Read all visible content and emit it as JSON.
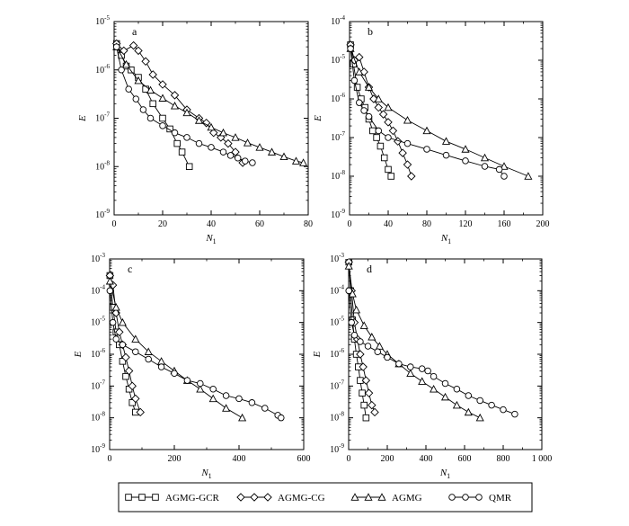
{
  "figure": {
    "legend": [
      {
        "name": "AGMG-GCR",
        "marker": "square"
      },
      {
        "name": "AGMG-CG",
        "marker": "diamond"
      },
      {
        "name": "AGMG",
        "marker": "triangle"
      },
      {
        "name": "QMR",
        "marker": "circle"
      }
    ]
  },
  "chart_data": [
    {
      "type": "line",
      "panel": "a",
      "xlabel": "N",
      "xlabel_sub": "1",
      "ylabel": "E",
      "xlim": [
        0,
        80
      ],
      "xticks": [
        0,
        20,
        40,
        60,
        80
      ],
      "ylim_exp": [
        -9,
        -5
      ],
      "yscale": "log",
      "series": [
        {
          "name": "AGMG-GCR",
          "x": [
            1,
            3,
            5,
            7,
            10,
            13,
            16,
            20,
            23,
            26,
            28,
            31
          ],
          "y": [
            3.5e-06,
            2e-06,
            1.2e-06,
            1e-06,
            7e-07,
            4e-07,
            2e-07,
            1e-07,
            6e-08,
            3e-08,
            2e-08,
            1e-08
          ]
        },
        {
          "name": "AGMG-CG",
          "x": [
            1,
            4,
            8,
            10,
            13,
            16,
            20,
            25,
            30,
            35,
            38,
            41,
            44,
            47,
            50,
            53
          ],
          "y": [
            3.5e-06,
            2.5e-06,
            3.2e-06,
            2.5e-06,
            1.5e-06,
            8e-07,
            5e-07,
            3e-07,
            1.5e-07,
            1e-07,
            8e-08,
            5e-08,
            4e-08,
            3e-08,
            2e-08,
            1.2e-08
          ]
        },
        {
          "name": "AGMG",
          "x": [
            1,
            5,
            10,
            15,
            20,
            25,
            30,
            35,
            40,
            45,
            50,
            55,
            60,
            65,
            70,
            75,
            78
          ],
          "y": [
            3e-06,
            1.3e-06,
            6e-07,
            3.8e-07,
            2.6e-07,
            1.8e-07,
            1.3e-07,
            9e-08,
            6.5e-08,
            5e-08,
            4e-08,
            3.1e-08,
            2.5e-08,
            2e-08,
            1.6e-08,
            1.3e-08,
            1.2e-08
          ]
        },
        {
          "name": "QMR",
          "x": [
            1,
            3,
            6,
            9,
            12,
            15,
            20,
            25,
            30,
            35,
            40,
            45,
            48,
            51,
            54,
            57
          ],
          "y": [
            3e-06,
            1e-06,
            4e-07,
            2.5e-07,
            1.5e-07,
            1e-07,
            7e-08,
            5e-08,
            4e-08,
            3e-08,
            2.5e-08,
            2e-08,
            1.7e-08,
            1.5e-08,
            1.3e-08,
            1.2e-08
          ]
        }
      ]
    },
    {
      "type": "line",
      "panel": "b",
      "xlabel": "N",
      "xlabel_sub": "1",
      "ylabel": "E",
      "xlim": [
        0,
        200
      ],
      "xticks": [
        0,
        40,
        80,
        120,
        160,
        200
      ],
      "ylim_exp": [
        -9,
        -4
      ],
      "yscale": "log",
      "series": [
        {
          "name": "AGMG-GCR",
          "x": [
            1,
            4,
            8,
            12,
            16,
            20,
            24,
            28,
            32,
            36,
            40,
            43
          ],
          "y": [
            2.5e-05,
            8e-06,
            2e-06,
            1e-06,
            6e-07,
            3e-07,
            1.5e-07,
            1e-07,
            6e-08,
            3e-08,
            1.5e-08,
            1e-08
          ]
        },
        {
          "name": "AGMG-CG",
          "x": [
            1,
            5,
            10,
            15,
            20,
            25,
            30,
            35,
            40,
            45,
            50,
            55,
            60,
            64
          ],
          "y": [
            2.5e-05,
            1e-05,
            1.2e-05,
            5e-06,
            2e-06,
            1e-06,
            6e-07,
            4e-07,
            2.5e-07,
            1.5e-07,
            8e-08,
            4e-08,
            2e-08,
            1e-08
          ]
        },
        {
          "name": "AGMG",
          "x": [
            1,
            10,
            20,
            30,
            40,
            60,
            80,
            100,
            120,
            140,
            160,
            185
          ],
          "y": [
            2e-05,
            5e-06,
            2e-06,
            1e-06,
            6e-07,
            2.8e-07,
            1.5e-07,
            8e-08,
            5e-08,
            3e-08,
            1.8e-08,
            1e-08
          ]
        },
        {
          "name": "QMR",
          "x": [
            1,
            5,
            10,
            15,
            20,
            30,
            40,
            60,
            80,
            100,
            120,
            140,
            155,
            160
          ],
          "y": [
            2e-05,
            3e-06,
            8e-07,
            5e-07,
            3.5e-07,
            1.5e-07,
            1e-07,
            7e-08,
            5e-08,
            3.5e-08,
            2.5e-08,
            1.8e-08,
            1.5e-08,
            1e-08
          ]
        }
      ]
    },
    {
      "type": "line",
      "panel": "c",
      "xlabel": "N",
      "xlabel_sub": "1",
      "ylabel": "E",
      "xlim": [
        0,
        600
      ],
      "xticks": [
        0,
        200,
        400,
        600
      ],
      "ylim_exp": [
        -9,
        -3
      ],
      "yscale": "log",
      "series": [
        {
          "name": "AGMG-GCR",
          "x": [
            1,
            10,
            20,
            30,
            40,
            50,
            60,
            70,
            80
          ],
          "y": [
            0.0003,
            3e-05,
            5e-06,
            2e-06,
            6e-07,
            2e-07,
            8e-08,
            3e-08,
            1.5e-08
          ]
        },
        {
          "name": "AGMG-CG",
          "x": [
            1,
            10,
            20,
            30,
            40,
            50,
            60,
            70,
            80,
            95
          ],
          "y": [
            0.0003,
            0.00015,
            2e-05,
            5e-06,
            2e-06,
            8e-07,
            3e-07,
            1e-07,
            4e-08,
            1.5e-08
          ]
        },
        {
          "name": "AGMG",
          "x": [
            1,
            20,
            40,
            80,
            120,
            160,
            200,
            240,
            280,
            320,
            360,
            410
          ],
          "y": [
            0.0002,
            3e-05,
            1e-05,
            3e-06,
            1.2e-06,
            6e-07,
            3e-07,
            1.5e-07,
            8e-08,
            4e-08,
            2e-08,
            1e-08
          ]
        },
        {
          "name": "QMR",
          "x": [
            1,
            10,
            20,
            40,
            80,
            120,
            160,
            200,
            240,
            280,
            320,
            360,
            400,
            440,
            480,
            520,
            530
          ],
          "y": [
            0.0001,
            1e-05,
            3e-06,
            2e-06,
            1.2e-06,
            7e-07,
            4e-07,
            2.5e-07,
            1.5e-07,
            1.2e-07,
            8e-08,
            5e-08,
            4e-08,
            3e-08,
            2e-08,
            1.2e-08,
            1e-08
          ]
        }
      ]
    },
    {
      "type": "line",
      "panel": "d",
      "xlabel": "N",
      "xlabel_sub": "1",
      "ylabel": "E",
      "xlim": [
        0,
        1000
      ],
      "xticks": [
        0,
        200,
        400,
        600,
        800,
        1000
      ],
      "xtick_labels": [
        "0",
        "200",
        "400",
        "600",
        "800",
        "1 000"
      ],
      "ylim_exp": [
        -9,
        -3
      ],
      "yscale": "log",
      "series": [
        {
          "name": "AGMG-GCR",
          "x": [
            1,
            10,
            20,
            30,
            40,
            50,
            60,
            70,
            80,
            90
          ],
          "y": [
            0.0008,
            0.0001,
            1.2e-05,
            3e-06,
            1e-06,
            4e-07,
            1.5e-07,
            6e-08,
            2.5e-08,
            1e-08
          ]
        },
        {
          "name": "AGMG-CG",
          "x": [
            1,
            15,
            30,
            45,
            60,
            75,
            90,
            105,
            120,
            135
          ],
          "y": [
            0.0008,
            0.0001,
            1e-05,
            3e-06,
            1e-06,
            4e-07,
            1.5e-07,
            6e-08,
            2.5e-08,
            1.5e-08
          ]
        },
        {
          "name": "AGMG",
          "x": [
            1,
            20,
            40,
            80,
            120,
            160,
            200,
            260,
            320,
            380,
            440,
            500,
            560,
            620,
            680
          ],
          "y": [
            0.0006,
            8e-05,
            2.5e-05,
            8e-06,
            3.5e-06,
            1.8e-06,
            1e-06,
            5e-07,
            2.5e-07,
            1.4e-07,
            8e-08,
            4.5e-08,
            2.5e-08,
            1.5e-08,
            1e-08
          ]
        },
        {
          "name": "QMR",
          "x": [
            1,
            15,
            30,
            60,
            100,
            150,
            200,
            260,
            320,
            380,
            410,
            440,
            500,
            560,
            620,
            680,
            740,
            800,
            860
          ],
          "y": [
            0.0001,
            1e-05,
            4e-06,
            2.5e-06,
            1.8e-06,
            1.2e-06,
            8e-07,
            5e-07,
            4e-07,
            3.5e-07,
            3e-07,
            2e-07,
            1.2e-07,
            8e-08,
            5e-08,
            3.5e-08,
            2.5e-08,
            1.8e-08,
            1.3e-08
          ]
        }
      ]
    }
  ]
}
